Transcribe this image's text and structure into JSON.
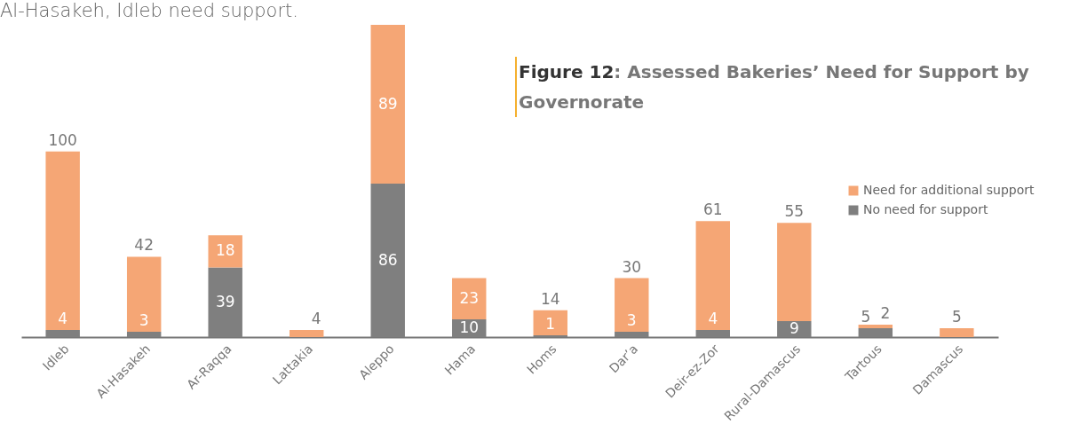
{
  "chart_data": {
    "type": "bar",
    "title": "Figure 12: Assessed Bakeries’ Need for Support by Governorate",
    "annotations": [
      "Al-Hasakeh, Idleb need support."
    ],
    "categories": [
      "Idleb",
      "Al-Hasakeh",
      "Ar-Raqqa",
      "Lattakia",
      "Aleppo",
      "Hama",
      "Homs",
      "Dar’a",
      "Deir-ez-Zor",
      "Rural-Damascus",
      "Tartous",
      "Damascus"
    ],
    "stacked": true,
    "data_labels": true,
    "legend": "right",
    "grid": false,
    "series": [
      {
        "name": "No need for support",
        "color": "#7f7f7f",
        "values": [
          4,
          3,
          39,
          null,
          86,
          10,
          1,
          3,
          4,
          9,
          5,
          null
        ]
      },
      {
        "name": "Need for additional support",
        "color": "#f5a675",
        "values": [
          100,
          42,
          18,
          4,
          89,
          23,
          14,
          30,
          61,
          55,
          2,
          5
        ]
      }
    ]
  }
}
